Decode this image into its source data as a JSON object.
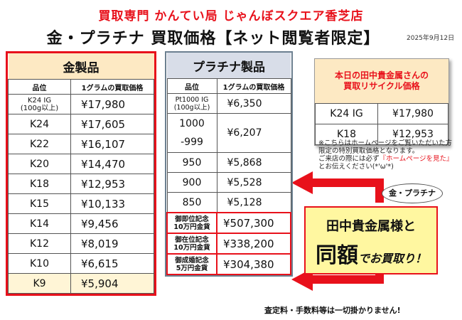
{
  "header": {
    "store_title": "買取専門 かんてい局 じゃんぼスクエア香芝店",
    "headline": "金・プラチナ 買取価格【ネット閲覧者限定】",
    "date": "2025年9月12日"
  },
  "gold": {
    "title": "金製品",
    "col_grade": "品位",
    "col_price": "1グラムの買取価格",
    "rows": [
      {
        "grade": "K24 IG\n(100g以上)",
        "price": "¥17,980"
      },
      {
        "grade": "K24",
        "price": "¥17,605"
      },
      {
        "grade": "K22",
        "price": "¥16,107"
      },
      {
        "grade": "K20",
        "price": "¥14,470"
      },
      {
        "grade": "K18",
        "price": "¥12,953"
      },
      {
        "grade": "K15",
        "price": "¥10,133"
      },
      {
        "grade": "K14",
        "price": "¥9,456"
      },
      {
        "grade": "K12",
        "price": "¥8,019"
      },
      {
        "grade": "K10",
        "price": "¥6,615"
      },
      {
        "grade": "K9",
        "price": "¥5,904"
      }
    ]
  },
  "platinum": {
    "title": "プラチナ製品",
    "col_grade": "品位",
    "col_price": "1グラムの買取価格",
    "row_ig": {
      "grade": "Pt1000 IG\n(100g以上)",
      "price": "¥6,350"
    },
    "row_1000": {
      "grade_a": "1000",
      "grade_b": "-999",
      "price": "¥6,207"
    },
    "rows": [
      {
        "grade": "950",
        "price": "¥5,868"
      },
      {
        "grade": "900",
        "price": "¥5,528"
      },
      {
        "grade": "850",
        "price": "¥5,128"
      }
    ],
    "coins": [
      {
        "grade": "御即位記念\n10万円金貨",
        "price": "¥507,300"
      },
      {
        "grade": "御在位記念\n10万円金貨",
        "price": "¥338,200"
      },
      {
        "grade": "御成婚記念\n5万円金貨",
        "price": "¥304,380"
      }
    ]
  },
  "recycle": {
    "title": "本日の田中貴金属さんの\n買取リサイクル価格",
    "rows": [
      {
        "grade": "K24 IG",
        "price": "¥17,980"
      },
      {
        "grade": "K18",
        "price": "¥12,953"
      }
    ]
  },
  "note": {
    "line1": "※こちらはホームページをご覧いただいた方限定の特別買取価格となります。",
    "line2a": "ご来店の際には必ず",
    "line2b": "『ホームページを見た』",
    "line2c": "とお伝えください(*'ω'*)"
  },
  "badge": "金・プラチナ",
  "callout": {
    "line1": "田中貴金属様と",
    "big": "同額",
    "small": "でお買取り！"
  },
  "footer": "査定料・手数料等は一切掛かりません!"
}
